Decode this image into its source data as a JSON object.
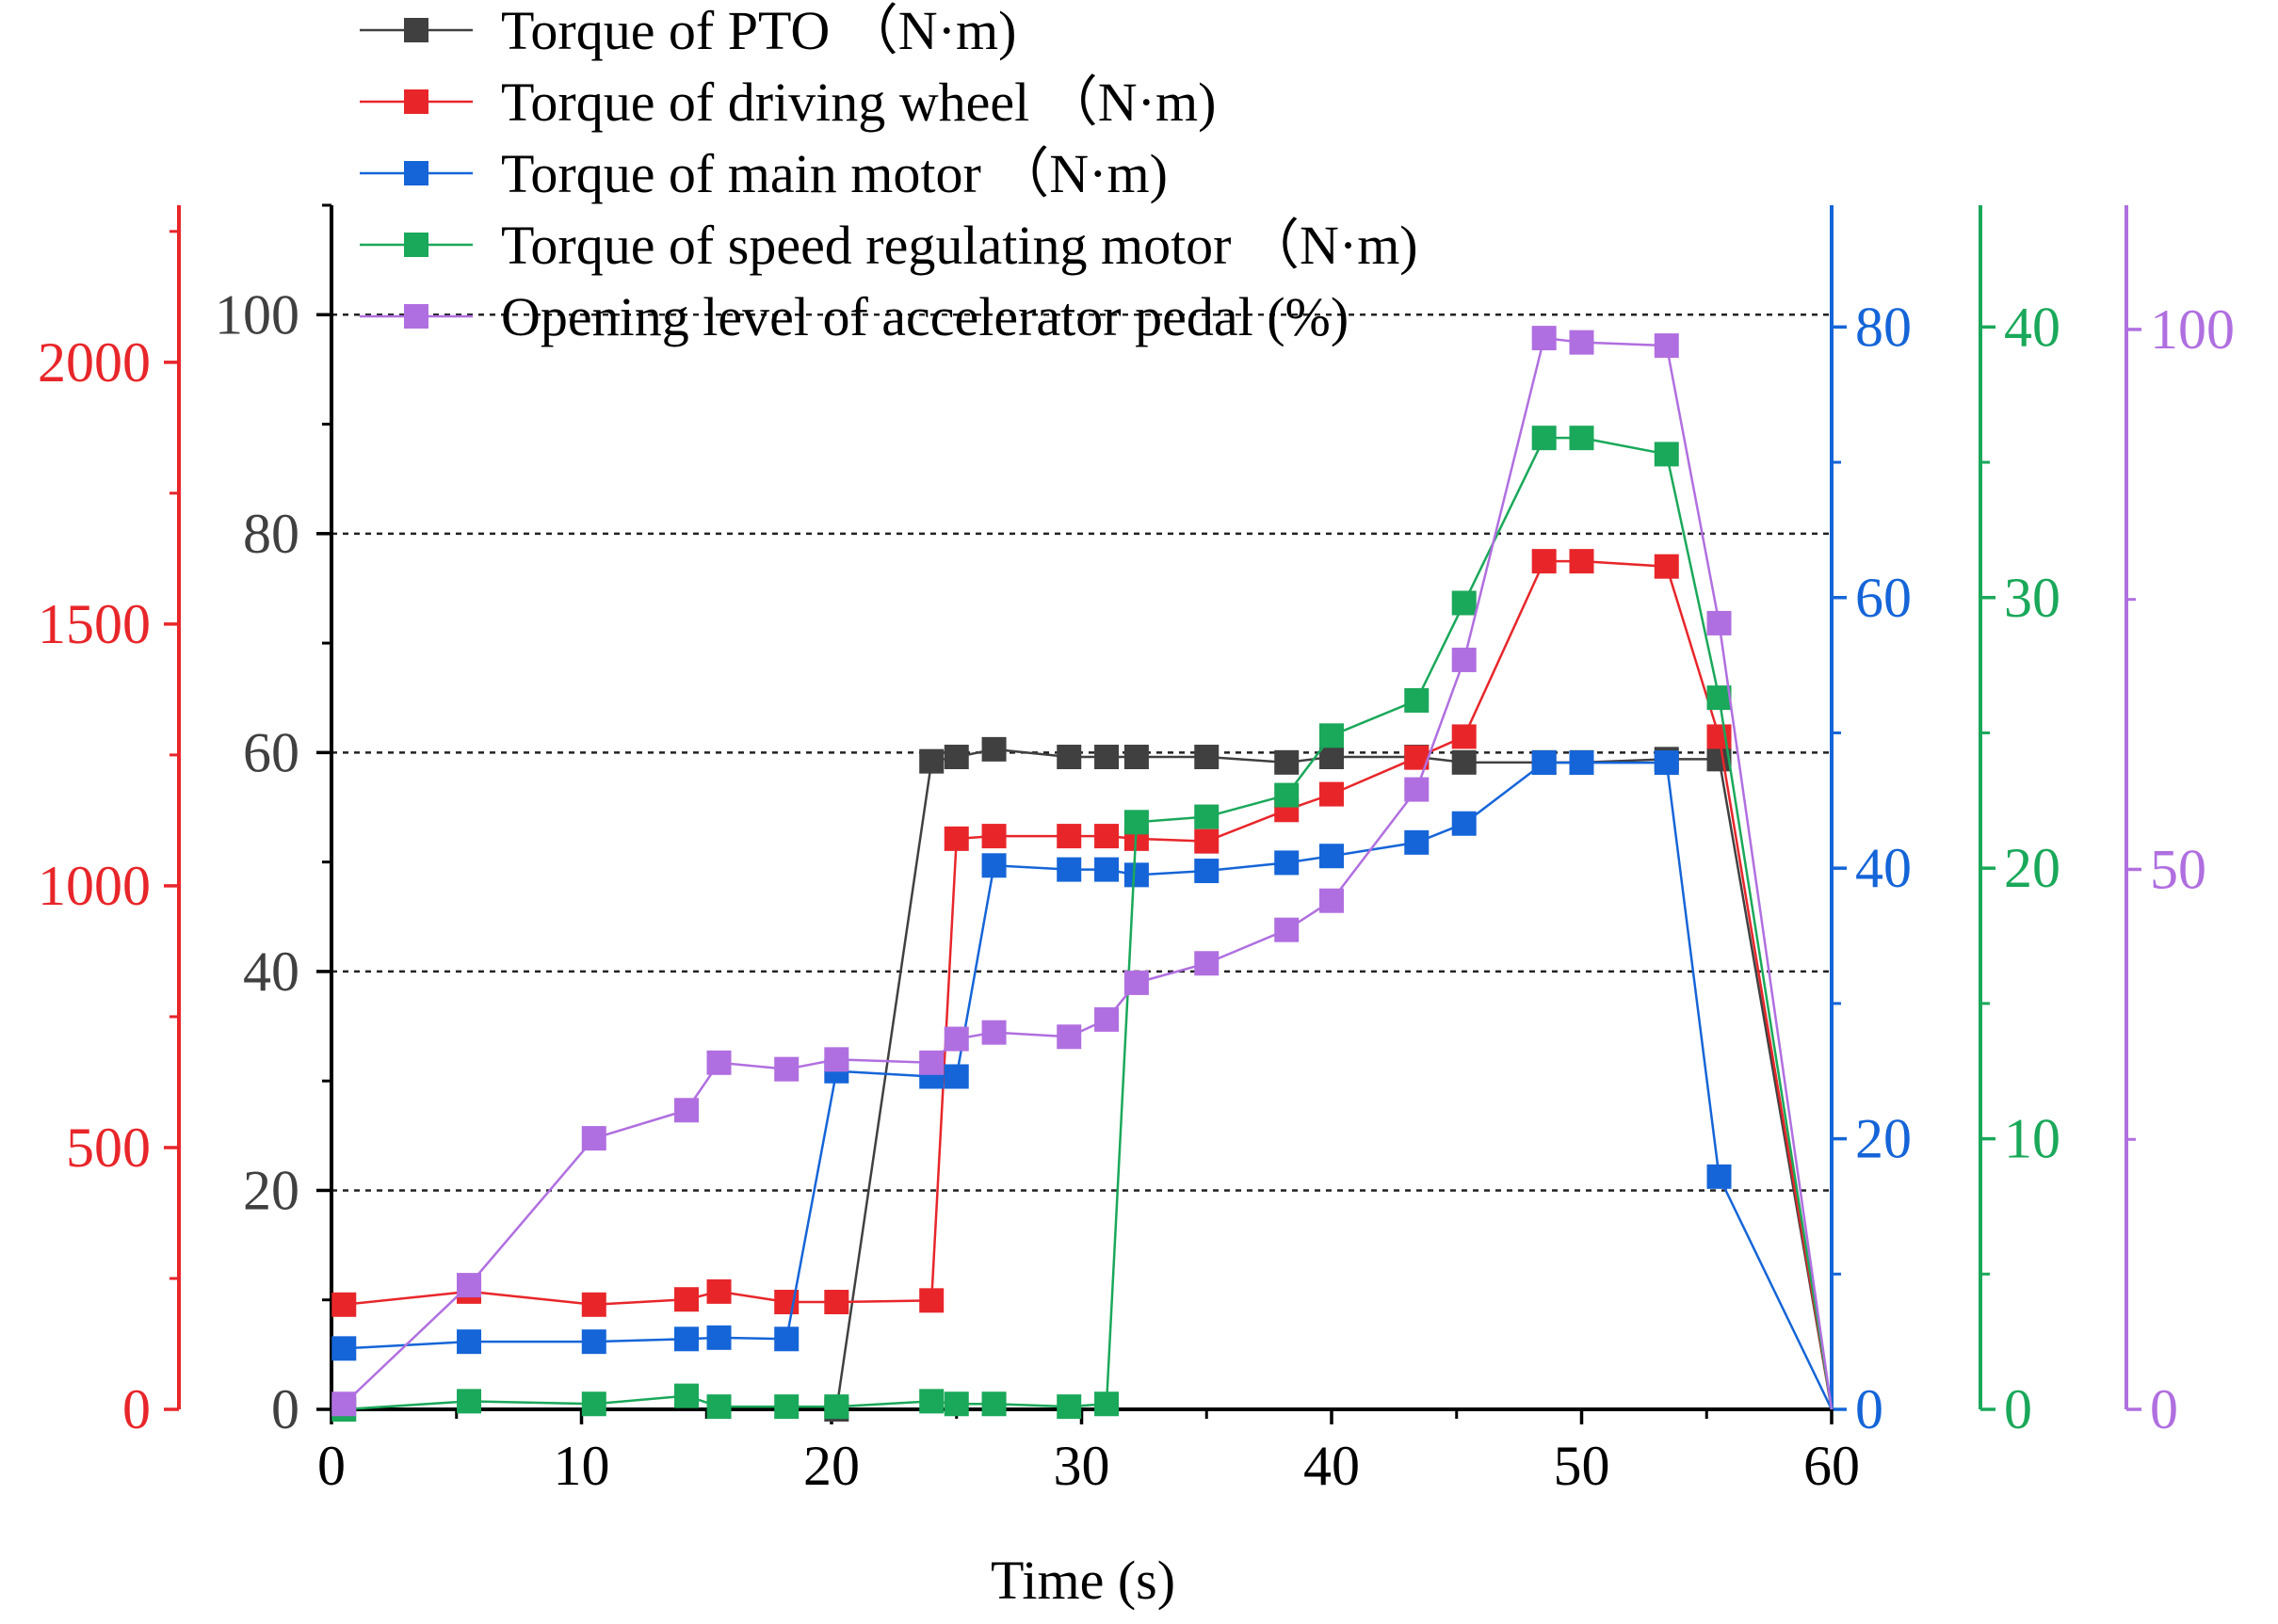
{
  "chart_data": {
    "type": "line",
    "title": "",
    "xlabel": "Time (s)",
    "xlim": [
      0,
      60
    ],
    "x_ticks": [
      0,
      10,
      20,
      30,
      40,
      50,
      60
    ],
    "grid": "dashed horizontal lines at left-axis values 20, 40, 60, 80 and 100",
    "legend_position": "top-left",
    "axes": {
      "left_black": {
        "color": "#000000",
        "range": [
          0,
          110
        ],
        "ticks": [
          0,
          20,
          40,
          60,
          80,
          100
        ]
      },
      "left_red": {
        "color": "#e8262a",
        "range": [
          0,
          2300
        ],
        "ticks": [
          0,
          500,
          1000,
          1500,
          2000
        ]
      },
      "right_blue": {
        "color": "#1565d8",
        "range": [
          0,
          89
        ],
        "ticks": [
          0,
          20,
          40,
          60,
          80
        ]
      },
      "right_green": {
        "color": "#1aa85a",
        "range": [
          0,
          44.5
        ],
        "ticks": [
          0,
          10,
          20,
          30,
          40
        ]
      },
      "right_purple": {
        "color": "#b06fe0",
        "range": [
          0,
          111.5
        ],
        "ticks": [
          0,
          50,
          100
        ]
      }
    },
    "series": [
      {
        "name": "Torque of PTO",
        "unit": "（N·m)",
        "axis": "left_black",
        "color": "#404040",
        "x": [
          20.2,
          24.0,
          25.0,
          26.5,
          29.5,
          31.0,
          32.2,
          35.0,
          38.2,
          40.0,
          43.4,
          45.3,
          48.5,
          50.0,
          53.4,
          55.5,
          60.0
        ],
        "y": [
          0,
          59.2,
          59.6,
          60.3,
          59.6,
          59.6,
          59.6,
          59.6,
          59.1,
          59.6,
          59.6,
          59.1,
          59.1,
          59.1,
          59.4,
          59.4,
          0
        ]
      },
      {
        "name": "Torque of driving wheel",
        "unit": "（N·m)",
        "axis": "left_red",
        "color": "#e8262a",
        "x": [
          0.5,
          5.5,
          10.5,
          14.2,
          15.5,
          18.2,
          20.2,
          24.0,
          25.0,
          26.5,
          29.5,
          31.0,
          32.2,
          35.0,
          38.2,
          40.0,
          43.4,
          45.3,
          48.5,
          50.0,
          53.4,
          55.5,
          60.0
        ],
        "y": [
          200,
          225,
          200,
          210,
          225,
          205,
          205,
          208,
          1090,
          1095,
          1095,
          1095,
          1090,
          1085,
          1145,
          1175,
          1245,
          1285,
          1620,
          1620,
          1610,
          1285,
          0
        ]
      },
      {
        "name": "Torque of main motor",
        "unit": "（N·m)",
        "axis": "right_blue",
        "color": "#1565d8",
        "x": [
          0.5,
          5.5,
          10.5,
          14.2,
          15.5,
          18.2,
          20.2,
          24.0,
          25.0,
          26.5,
          29.5,
          31.0,
          32.2,
          35.0,
          38.2,
          40.0,
          43.4,
          45.3,
          48.5,
          50.0,
          53.4,
          55.5,
          60.0
        ],
        "y": [
          4.5,
          5.0,
          5.0,
          5.2,
          5.3,
          5.2,
          25.0,
          24.6,
          24.6,
          40.2,
          39.9,
          39.9,
          39.5,
          39.8,
          40.4,
          40.9,
          41.9,
          43.3,
          47.8,
          47.8,
          47.8,
          17.2,
          0
        ]
      },
      {
        "name": "Torque of speed regulating motor",
        "unit": "（N·m)",
        "axis": "right_green",
        "color": "#1aa85a",
        "x": [
          0.5,
          5.5,
          10.5,
          14.2,
          15.5,
          18.2,
          20.2,
          24.0,
          25.0,
          26.5,
          29.5,
          31.0,
          32.2,
          35.0,
          38.2,
          40.0,
          43.4,
          45.3,
          48.5,
          50.0,
          53.4,
          55.5,
          60.0
        ],
        "y": [
          0,
          0.3,
          0.2,
          0.5,
          0.1,
          0.1,
          0.1,
          0.3,
          0.2,
          0.2,
          0.1,
          0.2,
          21.7,
          21.9,
          22.7,
          24.9,
          26.2,
          29.8,
          35.9,
          35.9,
          35.3,
          26.3,
          0
        ]
      },
      {
        "name": "Opening level of accelerator pedal",
        "unit": "(%)",
        "axis": "right_purple",
        "color": "#b06fe0",
        "x": [
          0.5,
          5.5,
          10.5,
          14.2,
          15.5,
          18.2,
          20.2,
          24.0,
          25.0,
          26.5,
          29.5,
          31.0,
          32.2,
          35.0,
          38.2,
          40.0,
          43.4,
          45.3,
          48.5,
          50.0,
          53.4,
          55.5,
          60.0
        ],
        "y": [
          0.5,
          11.5,
          25.1,
          27.7,
          32.1,
          31.5,
          32.4,
          32.1,
          34.3,
          34.9,
          34.5,
          36.1,
          39.5,
          41.3,
          44.4,
          47.1,
          57.4,
          69.4,
          99.2,
          98.8,
          98.5,
          72.8,
          0
        ]
      }
    ]
  }
}
